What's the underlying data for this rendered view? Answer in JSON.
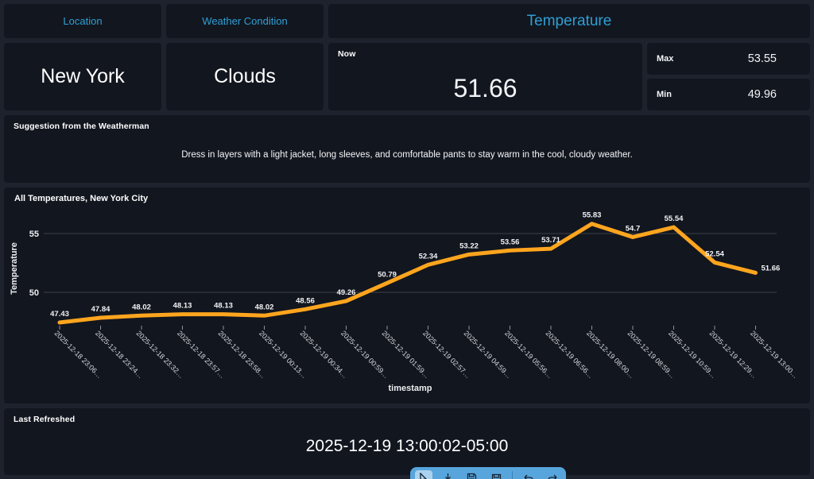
{
  "theme": {
    "page_bg": "#1d222c",
    "card_bg": "#12161f",
    "accent_blue": "#2f9fd4",
    "line_color": "#ffa51e",
    "toolbar_blue": "#57a5dc"
  },
  "header": {
    "location_label": "Location",
    "weather_condition_label": "Weather Condition",
    "temperature_label": "Temperature"
  },
  "cards": {
    "location_value": "New York",
    "condition_value": "Clouds",
    "now_label": "Now",
    "now_value": "51.66",
    "max_label": "Max",
    "max_value": "53.55",
    "min_label": "Min",
    "min_value": "49.96"
  },
  "suggestion": {
    "title": "Suggestion from the Weatherman",
    "text": "Dress in layers with a light jacket, long sleeves, and comfortable pants to stay warm in the cool, cloudy weather."
  },
  "chart_data": {
    "type": "line",
    "title": "All Temperatures, New York City",
    "xlabel": "timestamp",
    "ylabel": "Temperature",
    "ylim": [
      47.2,
      56.9
    ],
    "yticks": [
      50,
      55
    ],
    "grid": true,
    "legend": false,
    "line_color": "#ffa51e",
    "categories": [
      "2025-12-18 23:06…",
      "2025-12-18 23:24…",
      "2025-12-18 23:32…",
      "2025-12-18 23:57…",
      "2025-12-18 23:58…",
      "2025-12-19 00:13…",
      "2025-12-19 00:34…",
      "2025-12-19 00:59…",
      "2025-12-19 01:59…",
      "2025-12-19 02:57…",
      "2025-12-19 04:59…",
      "2025-12-19 05:56…",
      "2025-12-19 06:56…",
      "2025-12-19 08:00…",
      "2025-12-19 08:59…",
      "2025-12-19 10:59…",
      "2025-12-19 12:29…",
      "2025-12-19 13:00…"
    ],
    "values": [
      47.43,
      47.84,
      48.02,
      48.13,
      48.13,
      48.02,
      48.56,
      49.26,
      50.79,
      52.34,
      53.22,
      53.56,
      53.71,
      55.83,
      54.7,
      55.54,
      52.54,
      51.66
    ]
  },
  "last_refreshed": {
    "title": "Last Refreshed",
    "value": "2025-12-19 13:00:02-05:00"
  },
  "toolbar": {
    "icons": [
      "pointer-icon",
      "download-icon",
      "save-icon",
      "save-as-icon",
      "undo-icon",
      "redo-icon"
    ]
  }
}
